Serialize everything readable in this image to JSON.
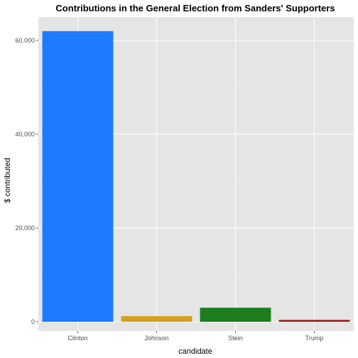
{
  "chart_data": {
    "type": "bar",
    "title": "Contributions in the General Election from Sanders' Supporters",
    "xlabel": "candidate",
    "ylabel": "$ contributed",
    "categories": [
      "Clinton",
      "Johnson",
      "Stein",
      "Trump"
    ],
    "values": [
      62000,
      1200,
      3000,
      400
    ],
    "colors": [
      "#1c7bff",
      "#d4a020",
      "#1e7e1e",
      "#a01818"
    ],
    "ylim": [
      0,
      65000
    ],
    "yticks": [
      0,
      20000,
      40000,
      60000
    ],
    "ytick_labels": [
      "0",
      "20,000",
      "40,000",
      "60,000"
    ],
    "grid": true,
    "background": "#e5e5e5",
    "legend": "none"
  }
}
